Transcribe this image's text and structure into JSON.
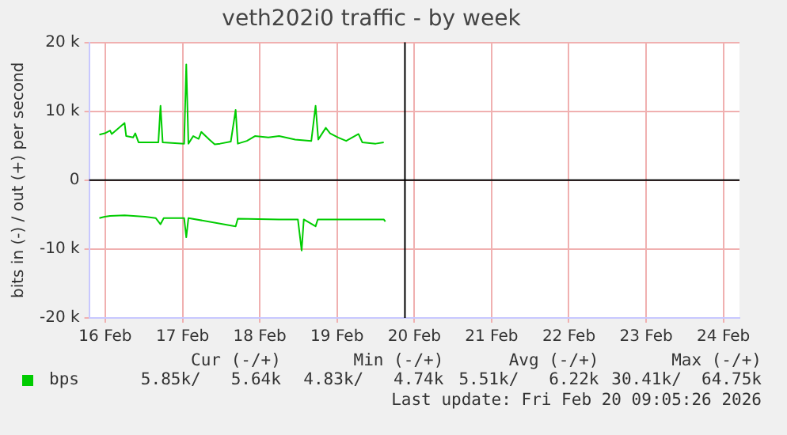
{
  "chart_data": {
    "type": "line",
    "title": "veth202i0 traffic - by week",
    "ylabel": "bits in (-) / out (+) per second",
    "xlim": [
      "2026-02-16T07:00",
      "2026-02-24T17:00"
    ],
    "xticks": [
      {
        "value": "2026-02-16T12:00",
        "label": "16 Feb"
      },
      {
        "value": "2026-02-17T12:00",
        "label": "17 Feb"
      },
      {
        "value": "2026-02-18T12:00",
        "label": "18 Feb"
      },
      {
        "value": "2026-02-19T12:00",
        "label": "19 Feb"
      },
      {
        "value": "2026-02-20T12:00",
        "label": "20 Feb"
      },
      {
        "value": "2026-02-21T12:00",
        "label": "21 Feb"
      },
      {
        "value": "2026-02-22T12:00",
        "label": "22 Feb"
      },
      {
        "value": "2026-02-23T12:00",
        "label": "23 Feb"
      },
      {
        "value": "2026-02-24T12:00",
        "label": "24 Feb"
      }
    ],
    "ylim": [
      -20000,
      20000
    ],
    "yticks": [
      {
        "value": -20000,
        "label": "-20 k"
      },
      {
        "value": -10000,
        "label": "-10 k"
      },
      0,
      {
        "value": 10000,
        "label": "10 k"
      },
      {
        "value": 20000,
        "label": "20 k"
      }
    ],
    "grid": true,
    "legend": "bottom left",
    "marker": "none",
    "line_style": "solid",
    "series": [
      {
        "name": "bps",
        "color": "#00cc00",
        "x": [
          "2026-02-16T10:10",
          "2026-02-16T11:50",
          "2026-02-16T13:30",
          "2026-02-16T14:00",
          "2026-02-16T18:00",
          "2026-02-16T18:30",
          "2026-02-16T20:40",
          "2026-02-16T21:20",
          "2026-02-16T22:20",
          "2026-02-17T04:30",
          "2026-02-17T05:10",
          "2026-02-17T05:50",
          "2026-02-17T12:30",
          "2026-02-17T13:10",
          "2026-02-17T13:50",
          "2026-02-17T15:20",
          "2026-02-17T17:00",
          "2026-02-17T17:50",
          "2026-02-17T20:20",
          "2026-02-17T22:00",
          "2026-02-17T23:40",
          "2026-02-18T03:00",
          "2026-02-18T04:30",
          "2026-02-18T05:10",
          "2026-02-18T08:00",
          "2026-02-18T10:30",
          "2026-02-18T14:40",
          "2026-02-18T18:00",
          "2026-02-18T23:00",
          "2026-02-19T04:00",
          "2026-02-19T05:20",
          "2026-02-19T06:10",
          "2026-02-19T08:30",
          "2026-02-19T09:50",
          "2026-02-19T12:20",
          "2026-02-19T14:50",
          "2026-02-19T18:40",
          "2026-02-19T19:50",
          "2026-02-20T00:00",
          "2026-02-20T02:30"
        ],
        "values": [
          6600,
          6800,
          7200,
          6700,
          8300,
          6400,
          6200,
          6800,
          5500,
          5500,
          10800,
          5500,
          5300,
          16800,
          5300,
          6400,
          6000,
          7000,
          5900,
          5200,
          5300,
          5600,
          10200,
          5300,
          5700,
          6400,
          6200,
          6400,
          5900,
          5700,
          10800,
          5900,
          7600,
          6800,
          6200,
          5700,
          6700,
          5500,
          5300,
          5500
        ]
      },
      {
        "color": "#00cc00",
        "x": [
          "2026-02-16T10:10",
          "2026-02-16T11:50",
          "2026-02-16T13:30",
          "2026-02-16T18:00",
          "2026-02-17T00:20",
          "2026-02-17T03:40",
          "2026-02-17T05:10",
          "2026-02-17T06:10",
          "2026-02-17T12:30",
          "2026-02-17T13:10",
          "2026-02-17T13:50",
          "2026-02-18T04:30",
          "2026-02-18T05:10",
          "2026-02-18T18:00",
          "2026-02-18T23:50",
          "2026-02-19T01:00",
          "2026-02-19T01:40",
          "2026-02-19T05:20",
          "2026-02-19T06:00",
          "2026-02-20T02:30",
          "2026-02-20T03:00"
        ],
        "values": [
          -5500,
          -5300,
          -5200,
          -5100,
          -5300,
          -5500,
          -6400,
          -5500,
          -5500,
          -8300,
          -5500,
          -6700,
          -5600,
          -5700,
          -5700,
          -10200,
          -5700,
          -6700,
          -5700,
          -5700,
          -6000
        ]
      }
    ],
    "ref_lines": [
      {
        "axis": "y",
        "value": 0,
        "color": "#000000"
      },
      {
        "axis": "x",
        "value": "2026-02-20T09:05",
        "color": "#000000"
      }
    ],
    "annotations": [
      "Cur (-/+)",
      "Min (-/+)",
      "Avg (-/+)",
      "Max (-/+)",
      "5.85k/   5.64k",
      "4.83k/   4.74k",
      "5.51k/   6.22k",
      "30.41k/  64.75k",
      "Last update: Fri Feb 20 09:05:26 2026"
    ]
  }
}
